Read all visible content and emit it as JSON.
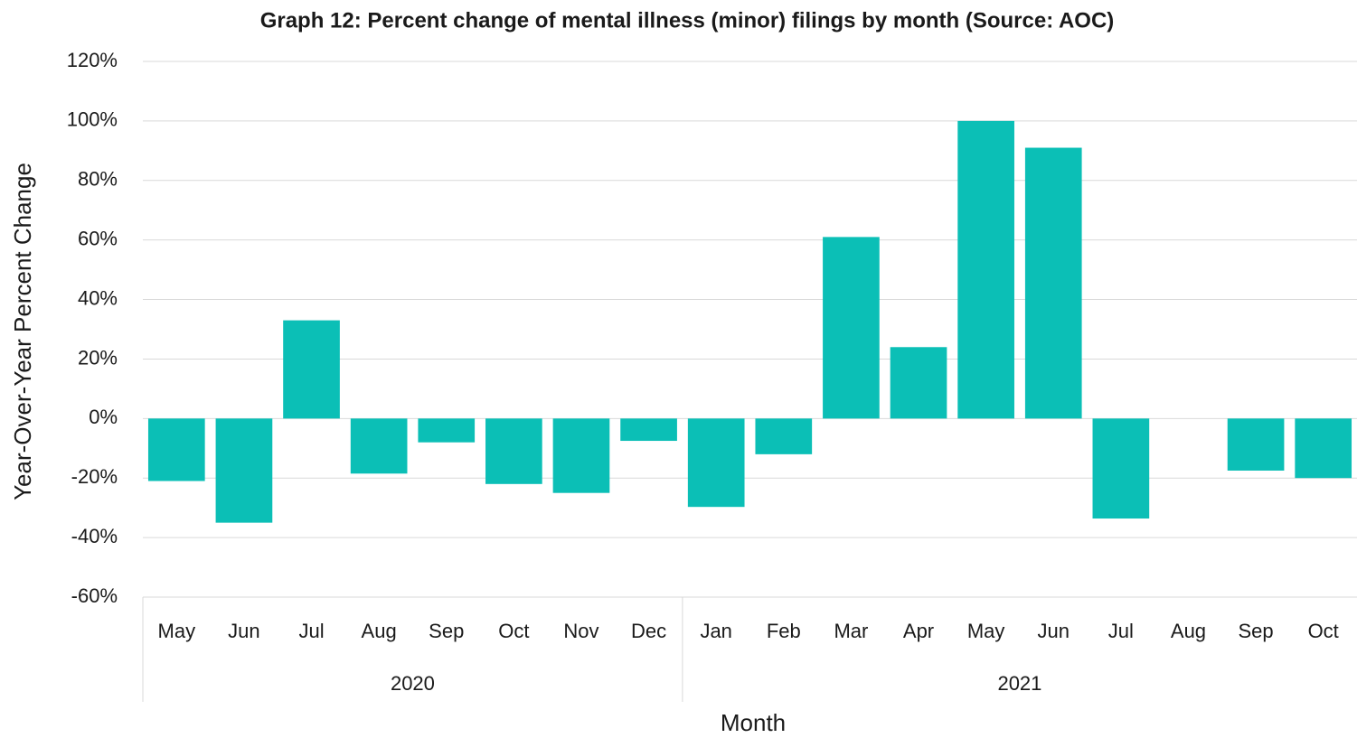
{
  "chart_data": {
    "type": "bar",
    "title": "Graph 12: Percent change of mental illness (minor) filings by month (Source: AOC)",
    "x_label": "Month",
    "y_label": "Year-Over-Year Percent Change",
    "color": "#0bbfb6",
    "grid": true,
    "groups": [
      {
        "name": "2020",
        "categories": [
          "May",
          "Jun",
          "Jul",
          "Aug",
          "Sep",
          "Oct",
          "Nov",
          "Dec"
        ],
        "values": [
          -21,
          -35,
          33,
          -18.5,
          -8,
          -22,
          -25,
          -7.5
        ]
      },
      {
        "name": "2021",
        "categories": [
          "Jan",
          "Feb",
          "Mar",
          "Apr",
          "May",
          "Jun",
          "Jul",
          "Aug",
          "Sep",
          "Oct"
        ],
        "values": [
          -29.7,
          -12,
          61,
          24,
          100,
          91,
          -33.6,
          0,
          -17.5,
          -20
        ]
      }
    ],
    "ylim": [
      -60,
      120
    ],
    "yticks": [
      {
        "value": -60,
        "label": "-60%"
      },
      {
        "value": -40,
        "label": "-40%"
      },
      {
        "value": -20,
        "label": "-20%"
      },
      {
        "value": 0,
        "label": "0%"
      },
      {
        "value": 20,
        "label": "20%"
      },
      {
        "value": 40,
        "label": "40%"
      },
      {
        "value": 60,
        "label": "60%"
      },
      {
        "value": 80,
        "label": "80%"
      },
      {
        "value": 100,
        "label": "100%"
      },
      {
        "value": 120,
        "label": "120%"
      }
    ]
  }
}
